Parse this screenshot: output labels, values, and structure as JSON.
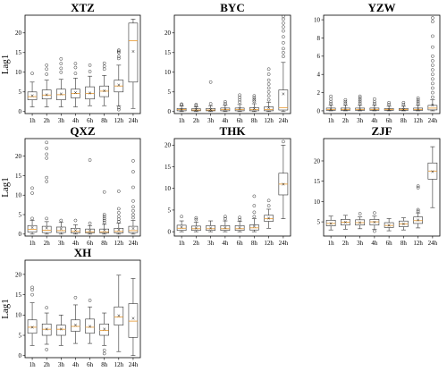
{
  "chart_data": [
    {
      "type": "box",
      "title": "XTZ",
      "ylabel": "Lag1",
      "categories": [
        "1h",
        "2h",
        "3h",
        "4h",
        "6h",
        "8h",
        "12h",
        "24h"
      ],
      "ylim": [
        -0.5,
        24.5
      ],
      "yticks": [
        0,
        5,
        10,
        15,
        20
      ],
      "boxes": [
        {
          "lo": 1.2,
          "q1": 3,
          "med": 3.8,
          "q3": 5,
          "hi": 7.5,
          "mean": 4,
          "fliers": [
            9.7
          ]
        },
        {
          "lo": 1.2,
          "q1": 3.2,
          "med": 4.2,
          "q3": 5.5,
          "hi": 8,
          "mean": 4.3,
          "fliers": [
            9.5,
            10.8,
            11.8
          ]
        },
        {
          "lo": 1.2,
          "q1": 3,
          "med": 4.3,
          "q3": 5.7,
          "hi": 8.2,
          "mean": 4.5,
          "fliers": [
            10,
            11,
            12.2,
            13.4
          ]
        },
        {
          "lo": 1.2,
          "q1": 3.5,
          "med": 4.6,
          "q3": 5.7,
          "hi": 8.5,
          "mean": 4.8,
          "fliers": [
            9.7,
            11.2,
            12.2
          ]
        },
        {
          "lo": 1.5,
          "q1": 3.2,
          "med": 4.6,
          "q3": 6.3,
          "hi": 9,
          "mean": 4.7,
          "fliers": [
            10.2,
            11.8
          ]
        },
        {
          "lo": 1.5,
          "q1": 3.8,
          "med": 5.2,
          "q3": 6.5,
          "hi": 9.2,
          "mean": 5.3,
          "fliers": [
            10.8,
            11.5,
            12.3
          ]
        },
        {
          "lo": 1.5,
          "q1": 5,
          "med": 6.5,
          "q3": 8,
          "hi": 11.8,
          "mean": 6.8,
          "fliers": [
            0.5,
            1,
            13.5,
            14,
            15,
            15.3,
            15.6
          ]
        },
        {
          "lo": 0.8,
          "q1": 7.5,
          "med": 18,
          "q3": 22.5,
          "hi": 23.5,
          "mean": 15.3,
          "fliers": []
        }
      ]
    },
    {
      "type": "box",
      "title": "BYC",
      "ylabel": "",
      "categories": [
        "1h",
        "2h",
        "3h",
        "4h",
        "6h",
        "8h",
        "12h",
        "24h"
      ],
      "ylim": [
        -0.5,
        24.5
      ],
      "yticks": [
        0,
        5,
        10,
        15,
        20
      ],
      "boxes": [
        {
          "lo": 0,
          "q1": 0.2,
          "med": 0.5,
          "q3": 0.8,
          "hi": 1.4,
          "mean": 0.55,
          "fliers": [
            1.7,
            1.9
          ]
        },
        {
          "lo": 0,
          "q1": 0.2,
          "med": 0.4,
          "q3": 0.7,
          "hi": 1.2,
          "mean": 0.5,
          "fliers": [
            1.5,
            1.8
          ]
        },
        {
          "lo": 0,
          "q1": 0.2,
          "med": 0.4,
          "q3": 0.8,
          "hi": 1.5,
          "mean": 0.55,
          "fliers": [
            2,
            7.5
          ]
        },
        {
          "lo": 0,
          "q1": 0.2,
          "med": 0.5,
          "q3": 0.9,
          "hi": 1.6,
          "mean": 0.6,
          "fliers": [
            2,
            2.5
          ]
        },
        {
          "lo": 0,
          "q1": 0.2,
          "med": 0.5,
          "q3": 0.9,
          "hi": 1.8,
          "mean": 0.7,
          "fliers": [
            2.4,
            3,
            3.6,
            4.2
          ]
        },
        {
          "lo": 0,
          "q1": 0.2,
          "med": 0.5,
          "q3": 1,
          "hi": 2,
          "mean": 0.7,
          "fliers": [
            2.6,
            3,
            3.5,
            4
          ]
        },
        {
          "lo": 0,
          "q1": 0.2,
          "med": 0.5,
          "q3": 1.2,
          "hi": 2.4,
          "mean": 0.9,
          "fliers": [
            3,
            4,
            5,
            6,
            7,
            8,
            9.5,
            10.8
          ]
        },
        {
          "lo": 0,
          "q1": 0.4,
          "med": 1,
          "q3": 5.5,
          "hi": 12.5,
          "mean": 4.5,
          "fliers": [
            14,
            15,
            16,
            17.5,
            19,
            20.5,
            21.5,
            22.5,
            23.5,
            24.2
          ]
        }
      ]
    },
    {
      "type": "box",
      "title": "YZW",
      "ylabel": "",
      "categories": [
        "1h",
        "2h",
        "3h",
        "4h",
        "6h",
        "8h",
        "12h",
        "24h"
      ],
      "ylim": [
        -0.3,
        10.5
      ],
      "yticks": [
        0,
        2,
        4,
        6,
        8,
        10
      ],
      "boxes": [
        {
          "lo": 0,
          "q1": 0.05,
          "med": 0.15,
          "q3": 0.3,
          "hi": 0.6,
          "mean": 0.2,
          "fliers": [
            0.8,
            1,
            1.3,
            1.6
          ]
        },
        {
          "lo": 0,
          "q1": 0.05,
          "med": 0.15,
          "q3": 0.3,
          "hi": 0.6,
          "mean": 0.2,
          "fliers": [
            0.8,
            1,
            1.2
          ]
        },
        {
          "lo": 0,
          "q1": 0.05,
          "med": 0.15,
          "q3": 0.3,
          "hi": 0.6,
          "mean": 0.2,
          "fliers": [
            0.8,
            1,
            1.2,
            1.4,
            1.6
          ]
        },
        {
          "lo": 0,
          "q1": 0.05,
          "med": 0.15,
          "q3": 0.3,
          "hi": 0.6,
          "mean": 0.2,
          "fliers": [
            0.8,
            1,
            1.3
          ]
        },
        {
          "lo": 0,
          "q1": 0.05,
          "med": 0.15,
          "q3": 0.25,
          "hi": 0.5,
          "mean": 0.15,
          "fliers": [
            0.7,
            0.9
          ]
        },
        {
          "lo": 0,
          "q1": 0.05,
          "med": 0.15,
          "q3": 0.25,
          "hi": 0.5,
          "mean": 0.15,
          "fliers": [
            0.7,
            0.9
          ]
        },
        {
          "lo": 0,
          "q1": 0.05,
          "med": 0.15,
          "q3": 0.3,
          "hi": 0.6,
          "mean": 0.2,
          "fliers": [
            0.8,
            1,
            1.2,
            1.4
          ]
        },
        {
          "lo": 0,
          "q1": 0.1,
          "med": 0.3,
          "q3": 0.6,
          "hi": 1.2,
          "mean": 0.6,
          "fliers": [
            1.5,
            2,
            2.5,
            3,
            3.5,
            4,
            4.5,
            5,
            5.5,
            6,
            7,
            8.2,
            9.8,
            10.2
          ]
        }
      ]
    },
    {
      "type": "box",
      "title": "QXZ",
      "ylabel": "Lag1",
      "categories": [
        "1h",
        "2h",
        "3h",
        "4h",
        "6h",
        "8h",
        "12h",
        "24h"
      ],
      "ylim": [
        -0.5,
        24.5
      ],
      "yticks": [
        0,
        5,
        10,
        15,
        20
      ],
      "boxes": [
        {
          "lo": 0,
          "q1": 0.5,
          "med": 1.2,
          "q3": 2.2,
          "hi": 3.5,
          "mean": 1.6,
          "fliers": [
            4,
            10.5,
            11.8
          ]
        },
        {
          "lo": 0,
          "q1": 0.4,
          "med": 1,
          "q3": 2,
          "hi": 3.2,
          "mean": 1.5,
          "fliers": [
            4,
            13.5,
            14.5,
            19.5,
            20.5,
            22,
            23.5
          ]
        },
        {
          "lo": 0,
          "q1": 0.4,
          "med": 0.9,
          "q3": 1.8,
          "hi": 3,
          "mean": 1.3,
          "fliers": [
            3.5
          ]
        },
        {
          "lo": 0,
          "q1": 0.3,
          "med": 0.7,
          "q3": 1.5,
          "hi": 2.4,
          "mean": 1,
          "fliers": [
            3.5
          ]
        },
        {
          "lo": 0,
          "q1": 0.3,
          "med": 0.6,
          "q3": 1.3,
          "hi": 2.2,
          "mean": 0.9,
          "fliers": [
            2.8,
            19
          ]
        },
        {
          "lo": 0,
          "q1": 0.3,
          "med": 0.6,
          "q3": 1.3,
          "hi": 2.5,
          "mean": 1,
          "fliers": [
            3,
            3.5,
            4,
            4.5,
            5,
            10.8
          ]
        },
        {
          "lo": 0,
          "q1": 0.3,
          "med": 0.7,
          "q3": 1.5,
          "hi": 2.8,
          "mean": 1.1,
          "fliers": [
            3.2,
            3.8,
            4.5,
            5.5,
            6.5,
            11
          ]
        },
        {
          "lo": 0,
          "q1": 0.4,
          "med": 0.9,
          "q3": 2,
          "hi": 3.5,
          "mean": 1.4,
          "fliers": [
            4.2,
            5,
            6,
            7,
            8.5,
            12,
            16,
            18.8
          ]
        }
      ]
    },
    {
      "type": "box",
      "title": "THK",
      "ylabel": "",
      "categories": [
        "1h",
        "2h",
        "3h",
        "4h",
        "6h",
        "8h",
        "12h",
        "24h"
      ],
      "ylim": [
        -1,
        21.5
      ],
      "yticks": [
        0,
        5,
        10,
        15,
        20
      ],
      "boxes": [
        {
          "lo": 0,
          "q1": 0.3,
          "med": 0.8,
          "q3": 1.5,
          "hi": 2.5,
          "mean": 1,
          "fliers": [
            3.5
          ]
        },
        {
          "lo": 0,
          "q1": 0.3,
          "med": 0.7,
          "q3": 1.3,
          "hi": 2.2,
          "mean": 0.8,
          "fliers": [
            2.8,
            3.2
          ]
        },
        {
          "lo": 0,
          "q1": 0.3,
          "med": 0.7,
          "q3": 1.4,
          "hi": 2.5,
          "mean": 0.8,
          "fliers": []
        },
        {
          "lo": 0,
          "q1": 0.3,
          "med": 0.7,
          "q3": 1.4,
          "hi": 2.5,
          "mean": 0.9,
          "fliers": [
            3,
            3.5
          ]
        },
        {
          "lo": 0,
          "q1": 0.3,
          "med": 0.7,
          "q3": 1.4,
          "hi": 2.4,
          "mean": 0.9,
          "fliers": [
            2.8,
            3.3
          ]
        },
        {
          "lo": 0,
          "q1": 0.4,
          "med": 0.9,
          "q3": 1.6,
          "hi": 3,
          "mean": 1.2,
          "fliers": [
            3.5,
            4.5,
            6,
            8.2
          ]
        },
        {
          "lo": 0.8,
          "q1": 2.4,
          "med": 3,
          "q3": 3.8,
          "hi": 5.2,
          "mean": 3.1,
          "fliers": [
            6,
            7.2
          ]
        },
        {
          "lo": 3,
          "q1": 8.5,
          "med": 11,
          "q3": 13.5,
          "hi": 20,
          "mean": 11,
          "fliers": [
            20.8
          ]
        }
      ]
    },
    {
      "type": "box",
      "title": "ZJF",
      "ylabel": "",
      "categories": [
        "1h",
        "2h",
        "3h",
        "4h",
        "6h",
        "8h",
        "12h",
        "24h"
      ],
      "ylim": [
        1.5,
        25.5
      ],
      "yticks": [
        5,
        10,
        15,
        20
      ],
      "boxes": [
        {
          "lo": 3,
          "q1": 4,
          "med": 4.6,
          "q3": 5.4,
          "hi": 6.4,
          "mean": 4.6,
          "fliers": []
        },
        {
          "lo": 3.2,
          "q1": 4.2,
          "med": 4.9,
          "q3": 5.6,
          "hi": 6.6,
          "mean": 4.9,
          "fliers": []
        },
        {
          "lo": 3.3,
          "q1": 4.2,
          "med": 4.8,
          "q3": 5.5,
          "hi": 6.2,
          "mean": 4.8,
          "fliers": [
            7
          ]
        },
        {
          "lo": 3.2,
          "q1": 4.2,
          "med": 5,
          "q3": 5.6,
          "hi": 6.4,
          "mean": 4.9,
          "fliers": [
            2.7,
            7.2
          ]
        },
        {
          "lo": 2.8,
          "q1": 3.6,
          "med": 4.1,
          "q3": 4.8,
          "hi": 5.8,
          "mean": 4.1,
          "fliers": []
        },
        {
          "lo": 3,
          "q1": 3.8,
          "med": 4.5,
          "q3": 5.2,
          "hi": 6,
          "mean": 4.5,
          "fliers": []
        },
        {
          "lo": 3.5,
          "q1": 4.6,
          "med": 5.3,
          "q3": 6.2,
          "hi": 7.2,
          "mean": 5.4,
          "fliers": [
            7.6,
            8,
            13.4,
            13.8
          ]
        },
        {
          "lo": 8.5,
          "q1": 15.5,
          "med": 17.5,
          "q3": 19.5,
          "hi": 23.5,
          "mean": 17.3,
          "fliers": []
        }
      ]
    },
    {
      "type": "box",
      "title": "XH",
      "ylabel": "Lag1",
      "categories": [
        "1h",
        "2h",
        "3h",
        "4h",
        "6h",
        "8h",
        "12h",
        "24h"
      ],
      "ylim": [
        -0.5,
        23.5
      ],
      "yticks": [
        0,
        5,
        10,
        15,
        20
      ],
      "boxes": [
        {
          "lo": 2.5,
          "q1": 5.5,
          "med": 7,
          "q3": 8.8,
          "hi": 13,
          "mean": 7,
          "fliers": [
            15,
            16.2,
            16.8
          ]
        },
        {
          "lo": 2.8,
          "q1": 5,
          "med": 6.5,
          "q3": 7.8,
          "hi": 10.5,
          "mean": 6.5,
          "fliers": [
            1.5,
            11.8
          ]
        },
        {
          "lo": 2.5,
          "q1": 5,
          "med": 6.5,
          "q3": 7.5,
          "hi": 10,
          "mean": 6.5,
          "fliers": []
        },
        {
          "lo": 3,
          "q1": 6,
          "med": 7.2,
          "q3": 8.8,
          "hi": 12.5,
          "mean": 7.5,
          "fliers": [
            14.3
          ]
        },
        {
          "lo": 3,
          "q1": 5.5,
          "med": 7,
          "q3": 9,
          "hi": 12,
          "mean": 7.2,
          "fliers": [
            13.6
          ]
        },
        {
          "lo": 2.5,
          "q1": 5,
          "med": 6.2,
          "q3": 7.8,
          "hi": 10.5,
          "mean": 6.5,
          "fliers": [
            0.5,
            1.3
          ]
        },
        {
          "lo": 1,
          "q1": 7.5,
          "med": 9.5,
          "q3": 12,
          "hi": 19.8,
          "mean": 9.8,
          "fliers": []
        },
        {
          "lo": 0,
          "q1": 4.5,
          "med": 8.5,
          "q3": 12.8,
          "hi": 19,
          "mean": 9.2,
          "fliers": []
        }
      ]
    }
  ]
}
